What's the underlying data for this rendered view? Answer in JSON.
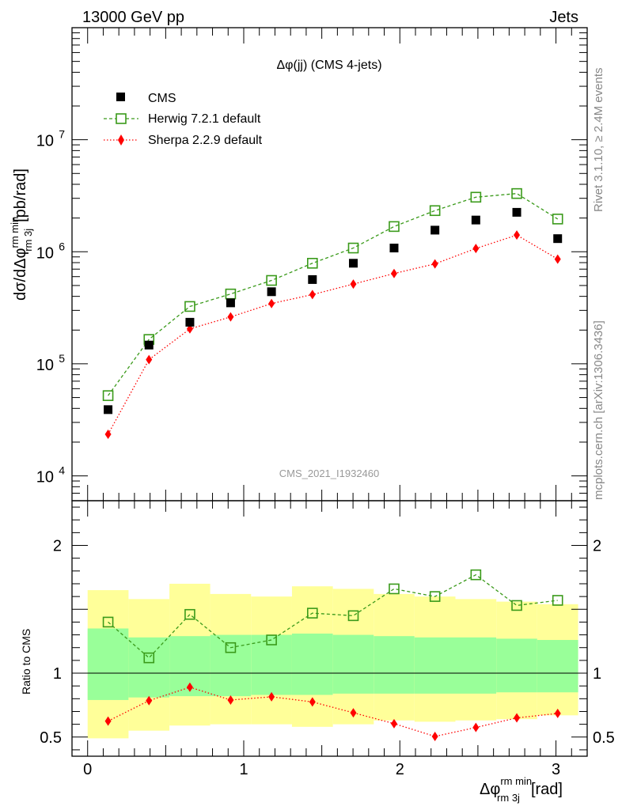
{
  "header": {
    "beam_label": "13000 GeV pp",
    "process_label": "Jets",
    "side_rivet": "Rivet 3.1.10, ≥ 2.4M events",
    "side_mcplots": "mcplots.cern.ch [arXiv:1306.3436]",
    "analysis_id": "CMS_2021_I1932460"
  },
  "colors": {
    "cms": "#000000",
    "herwig": "#3a9a1a",
    "sherpa": "#ff0000",
    "band_outer": "#ffff99",
    "band_inner": "#99ff99"
  },
  "chart_data": [
    {
      "type": "scatter",
      "title": "Δφ(jj) (CMS 4-jets)",
      "ylabel": "dσ/dΔφ rm min rm 3j [pb/rad]",
      "xlabel": "Δφ rm min rm 3j [rad]",
      "yscale": "log",
      "xlim": [
        -0.1,
        3.2
      ],
      "ylim": [
        6000,
        100000000
      ],
      "y_tick_labels": [
        "10^4",
        "10^5",
        "10^6",
        "10^7"
      ],
      "x": [
        0.131,
        0.393,
        0.655,
        0.916,
        1.178,
        1.44,
        1.702,
        1.963,
        2.225,
        2.487,
        2.749,
        3.011
      ],
      "legend": [
        "CMS",
        "Herwig 7.2.1 default",
        "Sherpa 2.2.9 default"
      ],
      "series": [
        {
          "name": "CMS",
          "values": [
            39000,
            147000,
            235000,
            350000,
            440000,
            565000,
            790000,
            1080000,
            1560000,
            1920000,
            2250000,
            1310000
          ]
        },
        {
          "name": "Herwig 7.2.1 default",
          "values": [
            52000,
            165000,
            325000,
            420000,
            555000,
            790000,
            1080000,
            1680000,
            2330000,
            3070000,
            3310000,
            1960000
          ]
        },
        {
          "name": "Sherpa 2.2.9 default",
          "values": [
            23500,
            109000,
            205000,
            262000,
            345000,
            415000,
            515000,
            640000,
            780000,
            1070000,
            1410000,
            860000
          ]
        }
      ]
    },
    {
      "type": "line",
      "ylabel": "Ratio to CMS",
      "xlabel": "Δφ rm min rm 3j [rad]",
      "xlim": [
        -0.1,
        3.2
      ],
      "ylim": [
        0.35,
        2.35
      ],
      "x_tick_labels": [
        "0",
        "1",
        "2",
        "3"
      ],
      "y_tick_labels": [
        "0.5",
        "1",
        "2"
      ],
      "x": [
        0.131,
        0.393,
        0.655,
        0.916,
        1.178,
        1.44,
        1.702,
        1.963,
        2.225,
        2.487,
        2.749,
        3.011
      ],
      "bin_edges": [
        0.0,
        0.262,
        0.524,
        0.785,
        1.047,
        1.309,
        1.571,
        1.833,
        2.094,
        2.356,
        2.618,
        2.88,
        3.142
      ],
      "band_outer": {
        "low": [
          0.49,
          0.55,
          0.59,
          0.6,
          0.6,
          0.58,
          0.6,
          0.63,
          0.62,
          0.63,
          0.64,
          0.67
        ],
        "high": [
          1.65,
          1.58,
          1.7,
          1.62,
          1.6,
          1.68,
          1.66,
          1.62,
          1.6,
          1.58,
          1.56,
          1.54
        ]
      },
      "band_inner": {
        "low": [
          0.79,
          0.81,
          0.82,
          0.82,
          0.83,
          0.83,
          0.84,
          0.84,
          0.84,
          0.84,
          0.85,
          0.85
        ],
        "high": [
          1.35,
          1.28,
          1.29,
          1.3,
          1.3,
          1.31,
          1.3,
          1.29,
          1.28,
          1.28,
          1.27,
          1.26
        ]
      },
      "series": [
        {
          "name": "Herwig 7.2.1 default",
          "values": [
            1.4,
            1.12,
            1.46,
            1.2,
            1.26,
            1.47,
            1.45,
            1.66,
            1.6,
            1.77,
            1.53,
            1.57
          ]
        },
        {
          "name": "Sherpa 2.2.9 default",
          "values": [
            0.625,
            0.785,
            0.89,
            0.79,
            0.815,
            0.775,
            0.69,
            0.605,
            0.505,
            0.575,
            0.65,
            0.685
          ]
        }
      ]
    }
  ]
}
